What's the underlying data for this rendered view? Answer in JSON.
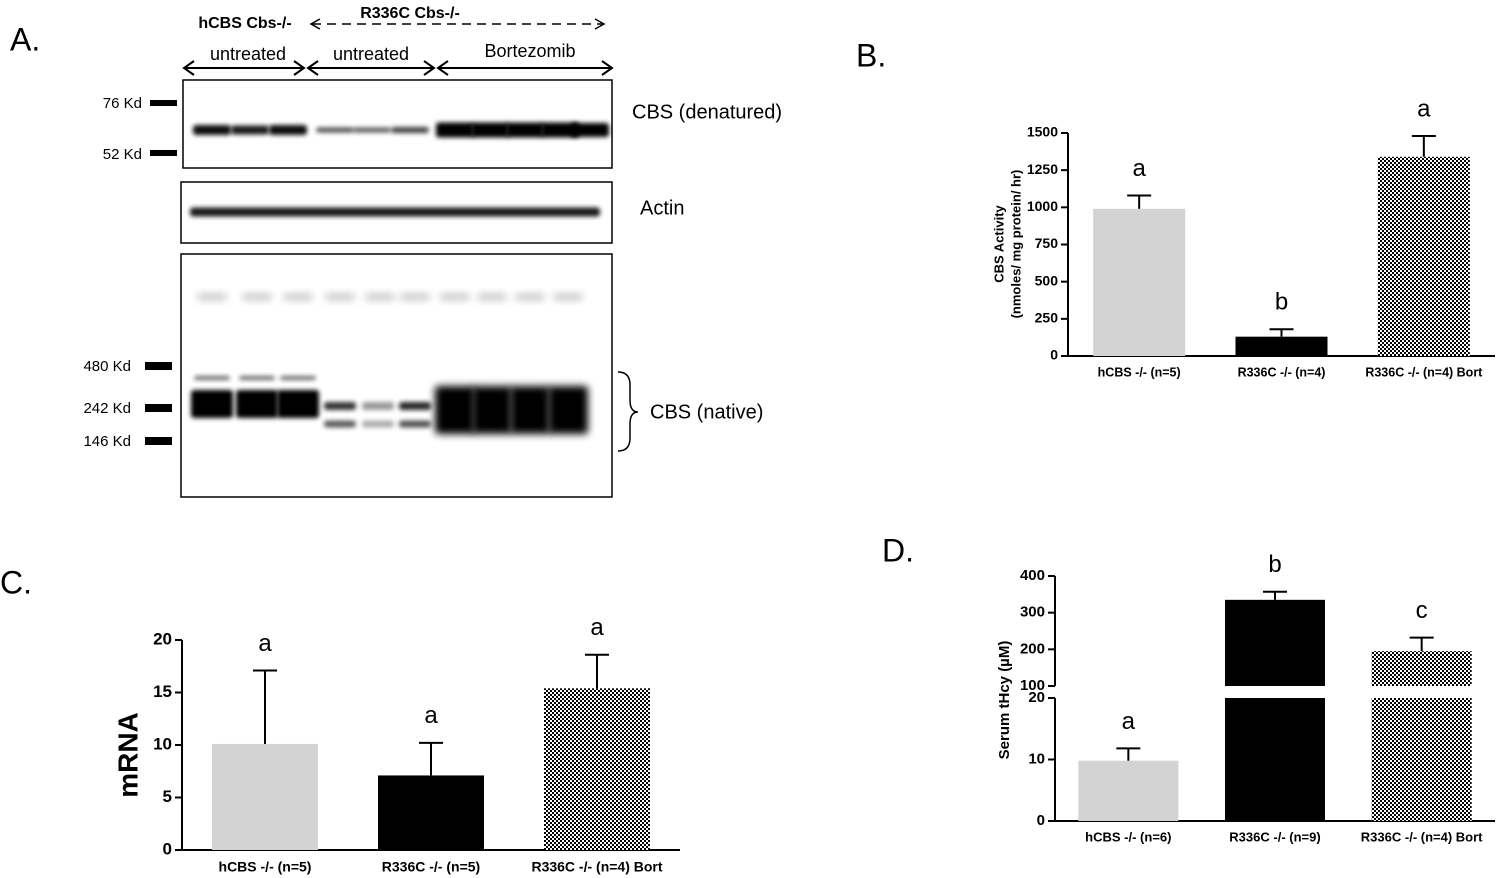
{
  "blot": {
    "panel_label": "A.",
    "genotypes": [
      "hCBS Cbs-/-",
      "R336C Cbs-/-"
    ],
    "groups": [
      "untreated",
      "untreated",
      "Bortezomib"
    ],
    "blots": [
      {
        "name": "CBS (denatured)",
        "markers": [
          "76 Kd",
          "52 Kd"
        ]
      },
      {
        "name": "Actin"
      },
      {
        "name": "CBS (native)",
        "markers": [
          "480 Kd",
          "242 Kd",
          "146 Kd"
        ]
      }
    ]
  },
  "chart_data": [
    {
      "type": "bar",
      "panel_label": "B.",
      "ylabel": [
        "CBS Activity",
        "(nmoles/ mg protein/ hr)"
      ],
      "categories": [
        "hCBS -/- (n=5)",
        "R336C -/- (n=4)",
        "R336C -/- (n=4) Bort"
      ],
      "values": [
        990,
        130,
        1340
      ],
      "errors": [
        90,
        50,
        140
      ],
      "annotations": [
        "a",
        "b",
        "a"
      ],
      "colors": [
        "#d3d3d3",
        "#000000",
        "#000000"
      ],
      "hatched": [
        false,
        false,
        true
      ],
      "ylim": [
        0,
        1500
      ],
      "yticks": [
        0,
        250,
        500,
        750,
        1000,
        1250,
        1500
      ]
    },
    {
      "type": "bar",
      "panel_label": "C.",
      "ylabel": "mRNA",
      "categories": [
        "hCBS -/- (n=5)",
        "R336C -/- (n=5)",
        "R336C -/- (n=4) Bort"
      ],
      "values": [
        10.1,
        7.1,
        15.4
      ],
      "errors": [
        7.0,
        3.1,
        3.2
      ],
      "annotations": [
        "a",
        "a",
        "a"
      ],
      "colors": [
        "#d3d3d3",
        "#000000",
        "#000000"
      ],
      "hatched": [
        false,
        false,
        true
      ],
      "ylim": [
        0,
        20
      ],
      "yticks": [
        0,
        5,
        10,
        15,
        20
      ]
    },
    {
      "type": "bar",
      "panel_label": "D.",
      "ylabel": "Serum tHcy (µM)",
      "categories": [
        "hCBS -/- (n=6)",
        "R336C -/- (n=9)",
        "R336C -/- (n=4) Bort"
      ],
      "values": [
        9.8,
        335,
        195
      ],
      "errors": [
        2.0,
        22,
        37
      ],
      "annotations": [
        "a",
        "b",
        "c"
      ],
      "colors": [
        "#d3d3d3",
        "#000000",
        "#000000"
      ],
      "hatched": [
        false,
        false,
        true
      ],
      "ylim": [
        0,
        20
      ],
      "yticks": [
        0,
        10,
        20
      ],
      "ylim_upper": [
        100,
        400
      ],
      "yticks_upper": [
        100,
        200,
        300,
        400
      ],
      "axis_break": true
    }
  ]
}
